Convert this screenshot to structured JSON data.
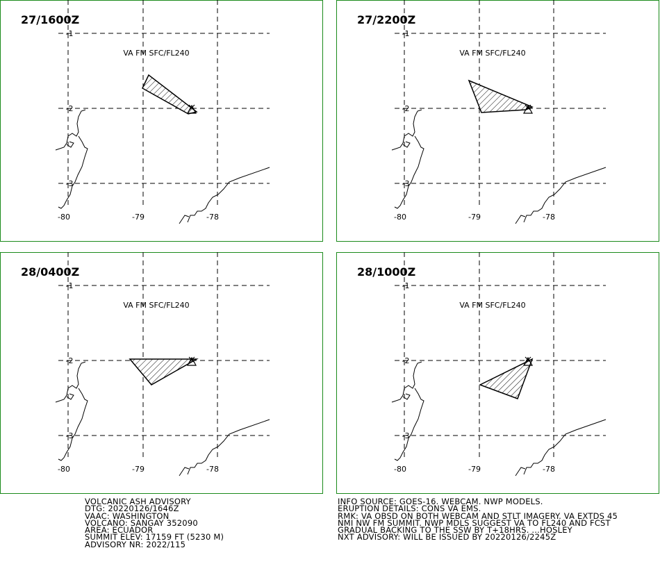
{
  "panels": [
    {
      "time": "27/1600Z",
      "layer": "VA FM SFC/FL240",
      "lat_labels": [
        "-1",
        "-2",
        "-3"
      ],
      "lon_labels": [
        "-80",
        "-79",
        "-78"
      ]
    },
    {
      "time": "27/2200Z",
      "layer": "VA FM SFC/FL240",
      "lat_labels": [
        "-1",
        "-2",
        "-3"
      ],
      "lon_labels": [
        "-80",
        "-79",
        "-78"
      ]
    },
    {
      "time": "28/0400Z",
      "layer": "VA FM SFC/FL240",
      "lat_labels": [
        "-1",
        "-2",
        "-3"
      ],
      "lon_labels": [
        "-80",
        "-79",
        "-78"
      ]
    },
    {
      "time": "28/1000Z",
      "layer": "VA FM SFC/FL240",
      "lat_labels": [
        "-1",
        "-2",
        "-3"
      ],
      "lon_labels": [
        "-80",
        "-79",
        "-78"
      ]
    }
  ],
  "advisory_left": [
    "VOLCANIC ASH ADVISORY",
    "DTG: 20220126/1646Z",
    "VAAC: WASHINGTON",
    "VOLCANO: SANGAY 352090",
    "AREA: ECUADOR",
    "SUMMIT ELEV: 17159 FT (5230 M)",
    "ADVISORY NR: 2022/115"
  ],
  "advisory_right": [
    "INFO SOURCE: GOES-16. WEBCAM. NWP MODELS.",
    "ERUPTION DETAILS: CONS VA EMS.",
    "RMK: VA OBSD ON BOTH WEBCAM AND STLT IMAGERY. VA EXTDS 45",
    "NMI NW FM SUMMIT. NWP MDLS SUGGEST VA TO FL240 AND FCST",
    "GRADUAL BACKING TO THE SSW BY T+18HRS. ...HOSLEY",
    "NXT ADVISORY: WILL BE ISSUED BY 20220126/2245Z"
  ]
}
